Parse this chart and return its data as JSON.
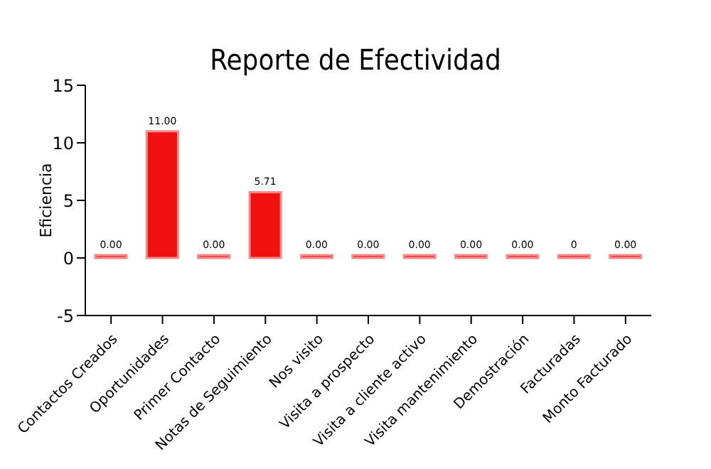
{
  "chart_data": {
    "type": "bar",
    "title": "Reporte de Efectividad",
    "ylabel": "Eficiencia",
    "categories": [
      "Contactos Creados",
      "Oportunidades",
      "Primer Contacto",
      "Notas de Seguimiento",
      "Nos visito",
      "Visita a prospecto",
      "Visita a cliente activo",
      "Visita mantenimiento",
      "Demostración",
      "Facturadas",
      "Monto Facturado"
    ],
    "values": [
      0,
      11,
      0,
      5.71,
      0,
      0,
      0,
      0,
      0,
      0,
      0
    ],
    "value_labels": [
      "0.00",
      "11.00",
      "0.00",
      "5.71",
      "0.00",
      "0.00",
      "0.00",
      "0.00",
      "0.00",
      "0",
      "0.00"
    ],
    "color": "#f01010",
    "ylim": [
      -5,
      15
    ],
    "yticks": [
      -5,
      0,
      5,
      10,
      15
    ]
  }
}
